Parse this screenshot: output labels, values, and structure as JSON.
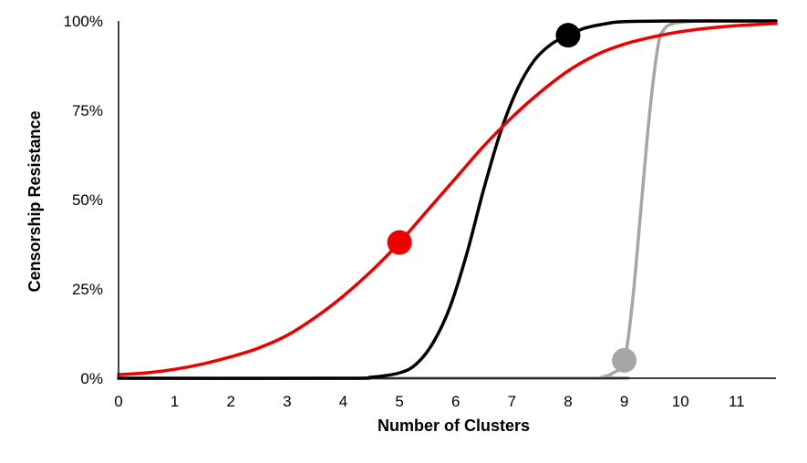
{
  "chart_data": {
    "type": "line",
    "title": "",
    "xlabel": "Number of Clusters",
    "ylabel": "Censorship Resistance",
    "xlim": [
      0,
      11.7
    ],
    "ylim": [
      0,
      100
    ],
    "x_ticks": [
      0,
      1,
      2,
      3,
      4,
      5,
      6,
      7,
      8,
      9,
      10,
      11
    ],
    "y_ticks": [
      {
        "value": 0,
        "label": "0%"
      },
      {
        "value": 25,
        "label": "25%"
      },
      {
        "value": 50,
        "label": "50%"
      },
      {
        "value": 75,
        "label": "75%"
      },
      {
        "value": 100,
        "label": "100%"
      }
    ],
    "grid": false,
    "legend": "none",
    "series": [
      {
        "color": "#ee0000",
        "x": [
          0,
          0.5,
          1,
          1.5,
          2,
          2.5,
          3,
          3.5,
          4,
          4.5,
          5,
          5.5,
          6,
          6.5,
          7,
          7.5,
          8,
          8.5,
          9,
          9.5,
          10,
          10.5,
          11,
          11.7
        ],
        "y": [
          1,
          1.5,
          2.5,
          4,
          6,
          8.5,
          12,
          17,
          23,
          30,
          38,
          47,
          56,
          65,
          73,
          80,
          86,
          90.5,
          93.5,
          95.5,
          97,
          98,
          98.7,
          99.3
        ],
        "marker": {
          "x": 5,
          "y": 38
        }
      },
      {
        "color": "#000000",
        "x": [
          0,
          4,
          4.5,
          5,
          5.3,
          5.6,
          5.9,
          6.2,
          6.5,
          6.8,
          7.1,
          7.4,
          7.7,
          8,
          8.3,
          8.7,
          9,
          10,
          11.7
        ],
        "y": [
          0,
          0,
          0.3,
          1.5,
          4,
          10,
          20,
          35,
          53,
          69,
          81,
          89,
          93.5,
          96,
          98,
          99.3,
          99.8,
          100,
          100
        ],
        "marker": {
          "x": 8,
          "y": 96
        }
      },
      {
        "color": "#a6a6a6",
        "x": [
          0,
          8.4,
          8.6,
          8.8,
          9,
          9.15,
          9.3,
          9.45,
          9.6,
          9.7,
          9.85,
          10.1,
          10.5,
          11.7
        ],
        "y": [
          0,
          0,
          0.3,
          1.5,
          5,
          22,
          48,
          74,
          93,
          97.5,
          99.2,
          99.8,
          100,
          100
        ],
        "marker": {
          "x": 9,
          "y": 5
        }
      }
    ]
  }
}
